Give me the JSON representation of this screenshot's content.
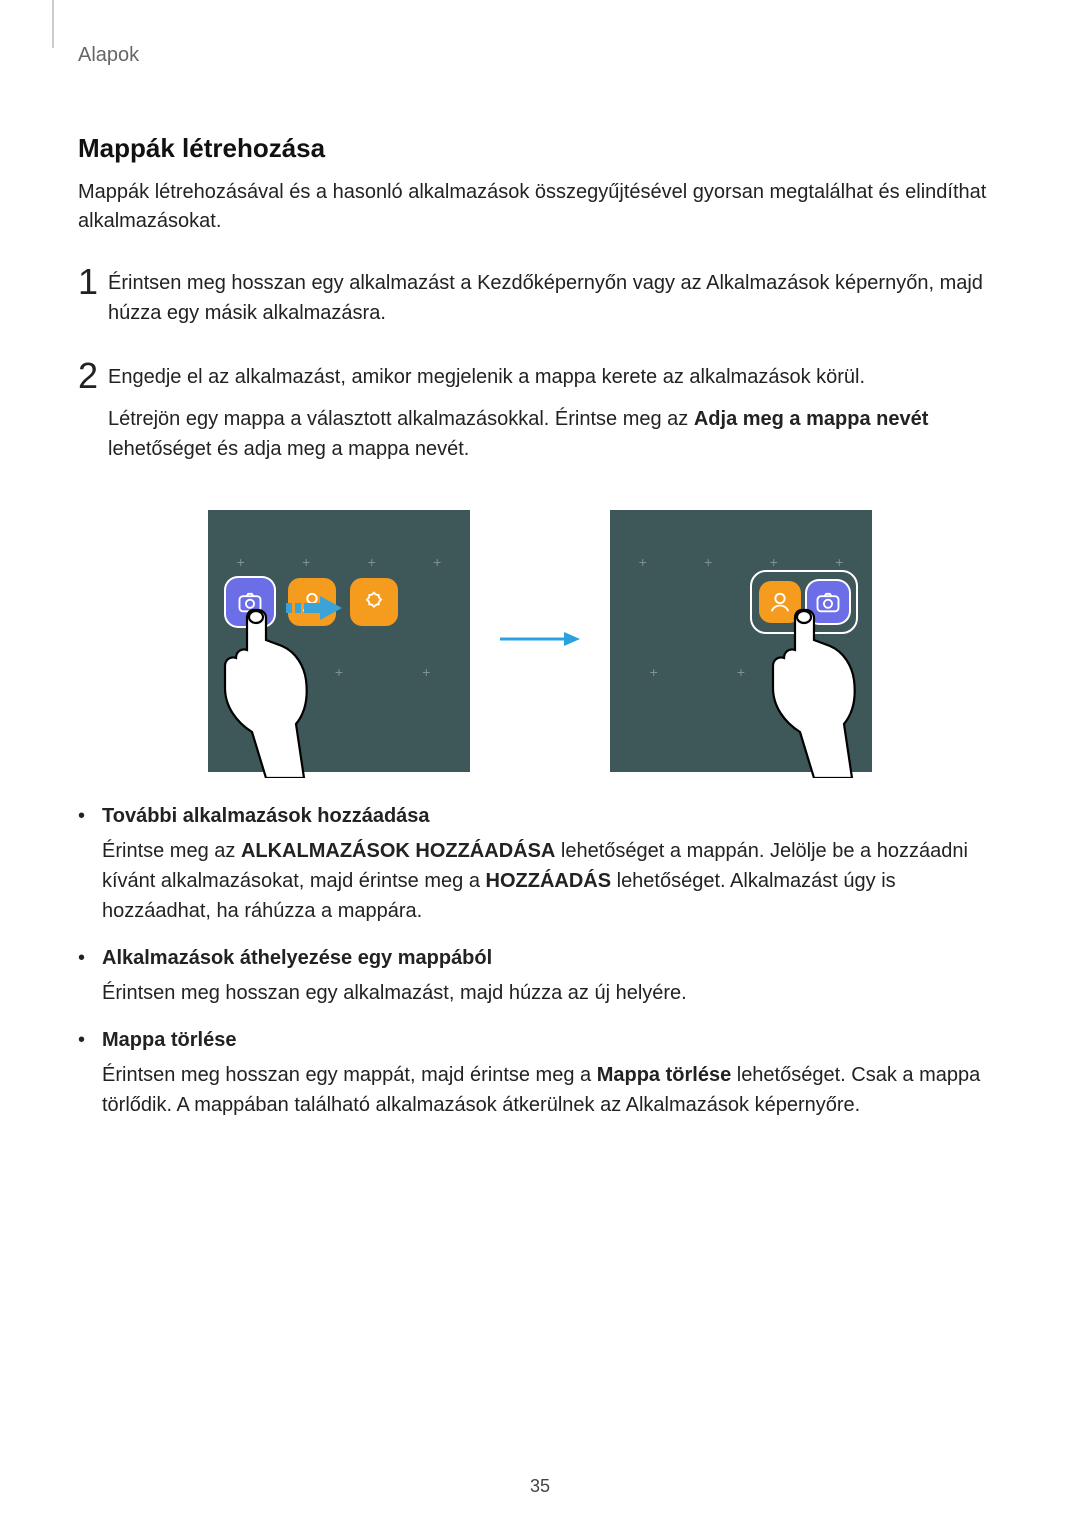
{
  "header": {
    "breadcrumb": "Alapok"
  },
  "section": {
    "title": "Mappák létrehozása",
    "intro": "Mappák létrehozásával és a hasonló alkalmazások összegyűjtésével gyorsan megtalálhat és elindíthat alkalmazásokat."
  },
  "steps": [
    {
      "num": "1",
      "text": "Érintsen meg hosszan egy alkalmazást a Kezdőképernyőn vagy az Alkalmazások képernyőn, majd húzza egy másik alkalmazásra."
    },
    {
      "num": "2",
      "text1": "Engedje el az alkalmazást, amikor megjelenik a mappa kerete az alkalmazások körül.",
      "text2_pre": "Létrejön egy mappa a választott alkalmazásokkal. Érintse meg az ",
      "text2_bold": "Adja meg a mappa nevét",
      "text2_post": " lehetőséget és adja meg a mappa nevét."
    }
  ],
  "figure": {
    "panel_bg": "#3e5759",
    "plus_color": "#7d9294",
    "camera_color": "#6b6ee6",
    "accent_color": "#f59b1d",
    "arrow_color": "#2aa2e0",
    "drag_arrow_fill": "#3aa3d8",
    "icons": {
      "left": [
        "camera-icon",
        "contacts-icon",
        "gallery-icon"
      ],
      "right_folder": [
        "contacts-icon",
        "camera-icon"
      ]
    }
  },
  "bullets": [
    {
      "title": "További alkalmazások hozzáadása",
      "body_parts": [
        {
          "t": "Érintse meg az "
        },
        {
          "t": "ALKALMAZÁSOK HOZZÁADÁSA",
          "b": true
        },
        {
          "t": " lehetőséget a mappán. Jelölje be a hozzáadni kívánt alkalmazásokat, majd érintse meg a "
        },
        {
          "t": "HOZZÁADÁS",
          "b": true
        },
        {
          "t": " lehetőséget. Alkalmazást úgy is hozzáadhat, ha ráhúzza a mappára."
        }
      ]
    },
    {
      "title": "Alkalmazások áthelyezése egy mappából",
      "body_parts": [
        {
          "t": "Érintsen meg hosszan egy alkalmazást, majd húzza az új helyére."
        }
      ]
    },
    {
      "title": "Mappa törlése",
      "body_parts": [
        {
          "t": "Érintsen meg hosszan egy mappát, majd érintse meg a "
        },
        {
          "t": "Mappa törlése",
          "b": true
        },
        {
          "t": " lehetőséget. Csak a mappa törlődik. A mappában található alkalmazások átkerülnek az Alkalmazások képernyőre."
        }
      ]
    }
  ],
  "page_number": "35"
}
